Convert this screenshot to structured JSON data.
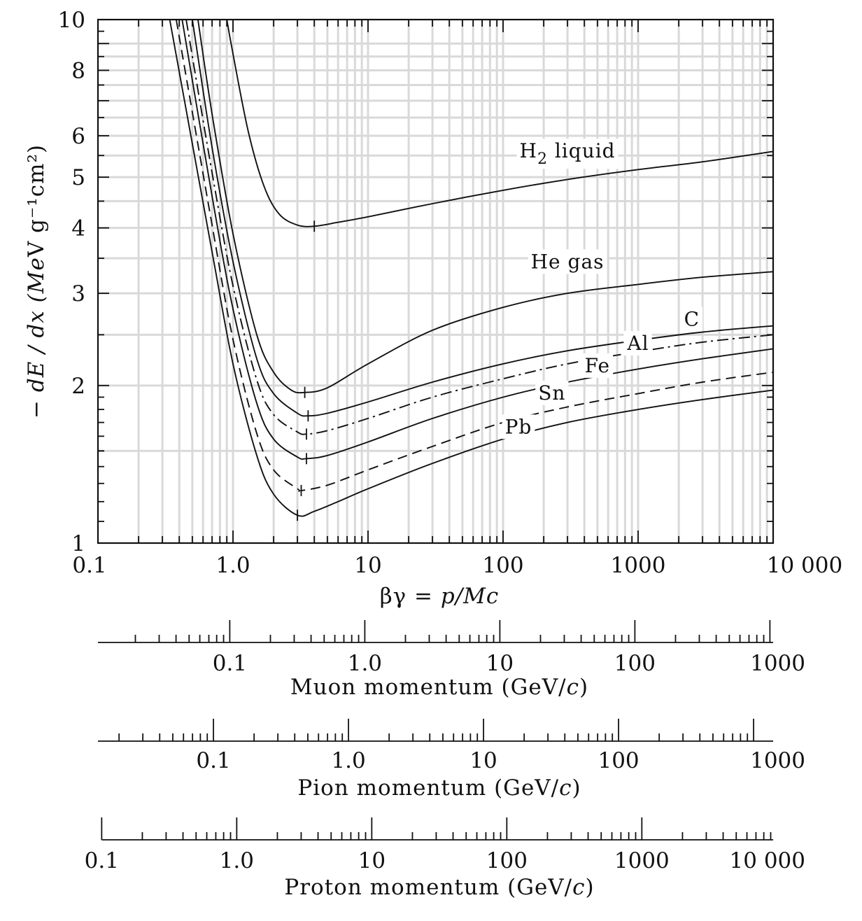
{
  "chart_data": {
    "type": "line",
    "xlabel": "βγ = p/Mc",
    "ylabel": "− dE / dx (MeV g⁻¹cm²)",
    "x_scale": "log",
    "y_scale": "log",
    "xlim": [
      0.1,
      10000
    ],
    "ylim": [
      1,
      10
    ],
    "grid": true,
    "x_tick_labels": [
      "0.1",
      "1.0",
      "10",
      "100",
      "1000",
      "10 000"
    ],
    "y_tick_labels": [
      "1",
      "2",
      "3",
      "4",
      "5",
      "6",
      "8",
      "10"
    ],
    "series": [
      {
        "name": "H₂ liquid",
        "line_style": "solid",
        "minimum": [
          4.0,
          4.03
        ],
        "points": [
          [
            0.9,
            10
          ],
          [
            1.0,
            8.6
          ],
          [
            1.3,
            6.1
          ],
          [
            1.7,
            4.8
          ],
          [
            2.2,
            4.25
          ],
          [
            3.0,
            4.05
          ],
          [
            4.0,
            4.03
          ],
          [
            6.0,
            4.1
          ],
          [
            10,
            4.2
          ],
          [
            30,
            4.45
          ],
          [
            100,
            4.72
          ],
          [
            300,
            4.95
          ],
          [
            1000,
            5.17
          ],
          [
            3000,
            5.35
          ],
          [
            10000,
            5.6
          ]
        ]
      },
      {
        "name": "He gas",
        "line_style": "solid",
        "minimum": [
          3.4,
          1.94
        ],
        "points": [
          [
            0.55,
            10
          ],
          [
            0.7,
            6.6
          ],
          [
            1.0,
            3.9
          ],
          [
            1.5,
            2.5
          ],
          [
            2.0,
            2.12
          ],
          [
            2.7,
            1.96
          ],
          [
            3.4,
            1.94
          ],
          [
            5.0,
            1.98
          ],
          [
            10,
            2.2
          ],
          [
            30,
            2.55
          ],
          [
            100,
            2.82
          ],
          [
            300,
            3.0
          ],
          [
            1000,
            3.12
          ],
          [
            3000,
            3.22
          ],
          [
            10000,
            3.3
          ]
        ]
      },
      {
        "name": "C",
        "line_style": "solid",
        "minimum": [
          3.6,
          1.75
        ],
        "points": [
          [
            0.5,
            10
          ],
          [
            0.7,
            5.7
          ],
          [
            1.0,
            3.45
          ],
          [
            1.5,
            2.25
          ],
          [
            2.0,
            1.93
          ],
          [
            3.0,
            1.77
          ],
          [
            3.6,
            1.75
          ],
          [
            5.0,
            1.77
          ],
          [
            10,
            1.86
          ],
          [
            30,
            2.03
          ],
          [
            100,
            2.2
          ],
          [
            300,
            2.33
          ],
          [
            1000,
            2.44
          ],
          [
            3000,
            2.53
          ],
          [
            10000,
            2.6
          ]
        ]
      },
      {
        "name": "Al",
        "line_style": "dashdot",
        "minimum": [
          3.5,
          1.615
        ],
        "points": [
          [
            0.45,
            10
          ],
          [
            0.7,
            5.1
          ],
          [
            1.0,
            3.1
          ],
          [
            1.5,
            2.05
          ],
          [
            2.0,
            1.76
          ],
          [
            3.0,
            1.63
          ],
          [
            3.5,
            1.615
          ],
          [
            5.0,
            1.64
          ],
          [
            10,
            1.73
          ],
          [
            30,
            1.9
          ],
          [
            100,
            2.06
          ],
          [
            300,
            2.2
          ],
          [
            1000,
            2.32
          ],
          [
            3000,
            2.42
          ],
          [
            10000,
            2.5
          ]
        ]
      },
      {
        "name": "Fe",
        "line_style": "solid",
        "minimum": [
          3.5,
          1.45
        ],
        "points": [
          [
            0.42,
            10
          ],
          [
            0.7,
            4.6
          ],
          [
            1.0,
            2.8
          ],
          [
            1.5,
            1.85
          ],
          [
            2.0,
            1.58
          ],
          [
            3.0,
            1.46
          ],
          [
            3.5,
            1.45
          ],
          [
            5.0,
            1.47
          ],
          [
            10,
            1.56
          ],
          [
            30,
            1.73
          ],
          [
            100,
            1.9
          ],
          [
            300,
            2.03
          ],
          [
            1000,
            2.15
          ],
          [
            3000,
            2.25
          ],
          [
            10000,
            2.35
          ]
        ]
      },
      {
        "name": "Sn",
        "line_style": "dashed",
        "minimum": [
          3.2,
          1.26
        ],
        "points": [
          [
            0.38,
            10
          ],
          [
            0.7,
            4.05
          ],
          [
            1.0,
            2.45
          ],
          [
            1.5,
            1.62
          ],
          [
            2.0,
            1.38
          ],
          [
            3.0,
            1.27
          ],
          [
            3.2,
            1.26
          ],
          [
            5.0,
            1.29
          ],
          [
            10,
            1.38
          ],
          [
            30,
            1.53
          ],
          [
            100,
            1.7
          ],
          [
            300,
            1.82
          ],
          [
            1000,
            1.93
          ],
          [
            3000,
            2.03
          ],
          [
            10000,
            2.12
          ]
        ]
      },
      {
        "name": "Pb",
        "line_style": "solid",
        "minimum": [
          3.0,
          1.13
        ],
        "points": [
          [
            0.34,
            10
          ],
          [
            0.7,
            3.6
          ],
          [
            1.0,
            2.2
          ],
          [
            1.5,
            1.47
          ],
          [
            2.0,
            1.24
          ],
          [
            3.0,
            1.13
          ],
          [
            4.0,
            1.15
          ],
          [
            6.0,
            1.2
          ],
          [
            10,
            1.27
          ],
          [
            30,
            1.42
          ],
          [
            100,
            1.58
          ],
          [
            300,
            1.7
          ],
          [
            1000,
            1.8
          ],
          [
            3000,
            1.88
          ],
          [
            10000,
            1.96
          ]
        ]
      }
    ],
    "curve_labels": [
      {
        "name": "H₂ liquid",
        "parts": [
          "H",
          "2",
          " liquid"
        ],
        "at": [
          300,
          5.45
        ]
      },
      {
        "name": "He gas",
        "parts": [
          "He gas"
        ],
        "at": [
          300,
          3.35
        ]
      },
      {
        "name": "C",
        "parts": [
          "C"
        ],
        "at": [
          2500,
          2.6
        ]
      },
      {
        "name": "Al",
        "parts": [
          "Al"
        ],
        "at": [
          1000,
          2.34
        ]
      },
      {
        "name": "Fe",
        "parts": [
          "Fe"
        ],
        "at": [
          500,
          2.12
        ]
      },
      {
        "name": "Sn",
        "parts": [
          "Sn"
        ],
        "at": [
          230,
          1.88
        ]
      },
      {
        "name": "Pb",
        "parts": [
          "Pb"
        ],
        "at": [
          130,
          1.62
        ]
      }
    ],
    "momentum_scales": [
      {
        "title": "Muon momentum (GeV/c)",
        "title_parts": [
          "Muon momentum (GeV/",
          "c",
          ")"
        ],
        "mass_gev": 0.10566,
        "range": [
          0.01,
          1000
        ],
        "tick_labels": [
          "0.1",
          "1.0",
          "10",
          "100",
          "1000"
        ],
        "tick_values": [
          0.1,
          1,
          10,
          100,
          1000
        ]
      },
      {
        "title": "Pion momentum (GeV/c)",
        "title_parts": [
          "Pion momentum (GeV/",
          "c",
          ")"
        ],
        "mass_gev": 0.13957,
        "range": [
          0.01,
          1000
        ],
        "tick_labels": [
          "0.1",
          "1.0",
          "10",
          "100",
          "1000"
        ],
        "tick_values": [
          0.1,
          1,
          10,
          100,
          1000
        ]
      },
      {
        "title": "Proton momentum (GeV/c)",
        "title_parts": [
          "Proton momentum (GeV/",
          "c",
          ")"
        ],
        "mass_gev": 0.93827,
        "range": [
          0.1,
          10000
        ],
        "tick_labels": [
          "0.1",
          "1.0",
          "10",
          "100",
          "1000",
          "10 000"
        ],
        "tick_values": [
          0.1,
          1,
          10,
          100,
          1000,
          10000
        ]
      }
    ]
  }
}
